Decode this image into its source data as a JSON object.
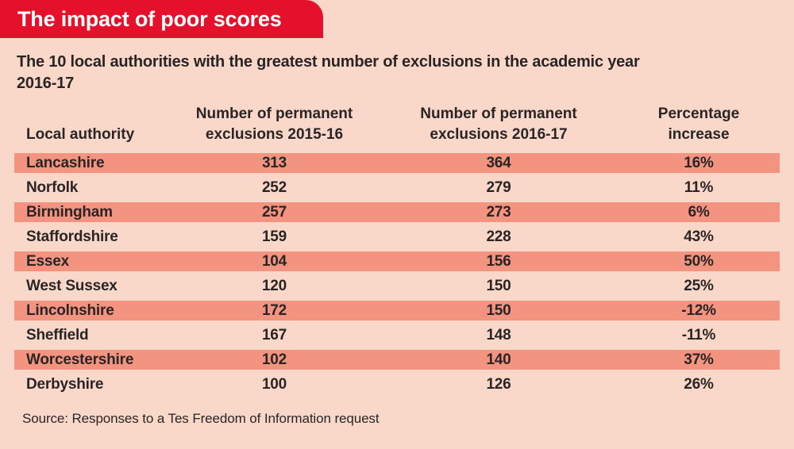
{
  "banner": {
    "title": "The impact of poor scores"
  },
  "subtitle_lines": {
    "line1": "The 10 local authorities with the greatest number of exclusions in the academic year",
    "line2": "2016-17"
  },
  "chart_data": {
    "type": "table",
    "title": "The impact of poor scores",
    "subtitle": "The 10 local authorities with the greatest number of exclusions in the academic year 2016-17",
    "columns": [
      "Local authority",
      "Number of permanent exclusions 2015-16",
      "Number of permanent exclusions 2016-17",
      "Percentage increase"
    ],
    "rows": [
      [
        "Lancashire",
        313,
        364,
        "16%"
      ],
      [
        "Norfolk",
        252,
        279,
        "11%"
      ],
      [
        "Birmingham",
        257,
        273,
        "6%"
      ],
      [
        "Staffordshire",
        159,
        228,
        "43%"
      ],
      [
        "Essex",
        104,
        156,
        "50%"
      ],
      [
        "West Sussex",
        120,
        150,
        "25%"
      ],
      [
        "Lincolnshire",
        172,
        150,
        "-12%"
      ],
      [
        "Sheffield",
        167,
        148,
        "-11%"
      ],
      [
        "Worcestershire",
        102,
        140,
        "37%"
      ],
      [
        "Derbyshire",
        100,
        126,
        "26%"
      ]
    ],
    "highlighted_rows": [
      0,
      2,
      4,
      6,
      8
    ],
    "source": "Source: Responses to a Tes Freedom of Information request"
  },
  "colors": {
    "background": "#f9d8ca",
    "banner": "#e5112b",
    "banner_text": "#ffffff",
    "row_highlight": "#f29480",
    "text": "#2b2425"
  }
}
